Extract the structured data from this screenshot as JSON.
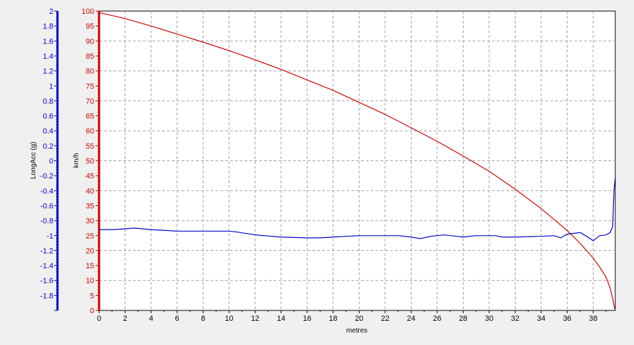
{
  "chart_data": {
    "type": "line",
    "xlabel": "metres",
    "x_ticks": [
      "0",
      "2",
      "4",
      "6",
      "8",
      "10",
      "12",
      "14",
      "16",
      "18",
      "20",
      "22",
      "24",
      "26",
      "28",
      "30",
      "32",
      "34",
      "36",
      "38"
    ],
    "xlim": [
      0,
      39.7
    ],
    "grid": true,
    "y_left": {
      "label": "LongAcc (g)",
      "color": "#0000cc",
      "ylim": [
        -2,
        2
      ],
      "ticks": [
        "2",
        "1.8",
        "1.6",
        "1.4",
        "1.2",
        "1",
        "0.8",
        "0.6",
        "0.4",
        "0.2",
        "0",
        "-0.2",
        "-0.4",
        "-0.6",
        "-0.8",
        "-1",
        "-1.2",
        "-1.4",
        "-1.6",
        "-1.8"
      ]
    },
    "y_right": {
      "label": "km/h",
      "color": "#cc0000",
      "ylim": [
        0,
        100
      ],
      "ticks": [
        "100",
        "95",
        "90",
        "85",
        "80",
        "75",
        "70",
        "65",
        "60",
        "55",
        "50",
        "45",
        "40",
        "35",
        "30",
        "25",
        "20",
        "15",
        "10",
        "5",
        "0"
      ]
    },
    "series": [
      {
        "axis": "speed",
        "color": "#cc0000",
        "x": [
          0,
          2,
          4,
          6,
          8,
          10,
          12,
          14,
          16,
          18,
          20,
          22,
          24,
          26,
          28,
          30,
          32,
          34,
          36,
          37,
          38,
          38.5,
          39,
          39.3,
          39.5,
          39.65
        ],
        "y": [
          99.5,
          97.5,
          95,
          92.3,
          89.6,
          86.8,
          83.7,
          80.5,
          77,
          73.5,
          69.5,
          65.5,
          61,
          56.5,
          51.6,
          46.5,
          40.5,
          34,
          26.7,
          22.4,
          17.5,
          14.5,
          11,
          7.5,
          4,
          0.5
        ]
      },
      {
        "axis": "longacc",
        "color": "#0000cc",
        "x": [
          0,
          1,
          2,
          2.7,
          4,
          6,
          8,
          10,
          10.5,
          12,
          14,
          16,
          17,
          18,
          19,
          20,
          21,
          22,
          23,
          24,
          24.7,
          25.5,
          26.5,
          27.5,
          28,
          29,
          30,
          30.5,
          31,
          32,
          34,
          35,
          35.5,
          36,
          37,
          37.5,
          38,
          38.5,
          39,
          39.3,
          39.5,
          39.6,
          39.7
        ],
        "y": [
          -0.92,
          -0.92,
          -0.91,
          -0.9,
          -0.92,
          -0.94,
          -0.94,
          -0.94,
          -0.95,
          -0.99,
          -1.02,
          -1.03,
          -1.03,
          -1.02,
          -1.01,
          -1.0,
          -1.0,
          -1.0,
          -1.0,
          -1.02,
          -1.04,
          -1.01,
          -0.99,
          -1.01,
          -1.02,
          -1.0,
          -1.0,
          -1.0,
          -1.02,
          -1.02,
          -1.01,
          -1.0,
          -1.03,
          -0.98,
          -0.96,
          -1.01,
          -1.07,
          -1.0,
          -0.99,
          -0.96,
          -0.88,
          -0.4,
          -0.22
        ]
      }
    ]
  }
}
